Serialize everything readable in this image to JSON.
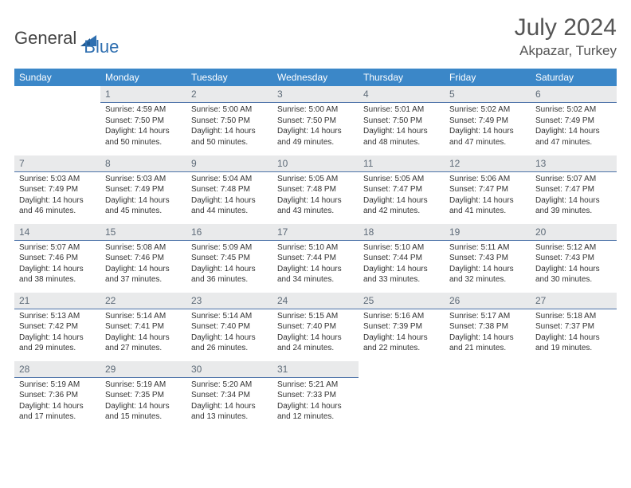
{
  "logo": {
    "part1": "General",
    "part2": "Blue"
  },
  "title": "July 2024",
  "location": "Akpazar, Turkey",
  "colors": {
    "headerBg": "#3b87c8",
    "dayNumBg": "#e9eaeb",
    "dayNumBorder": "#4c72a8",
    "logoBlue": "#2f6fb0"
  },
  "dayHeaders": [
    "Sunday",
    "Monday",
    "Tuesday",
    "Wednesday",
    "Thursday",
    "Friday",
    "Saturday"
  ],
  "weeks": [
    [
      {
        "n": "",
        "sr": "",
        "ss": "",
        "dl1": "",
        "dl2": ""
      },
      {
        "n": "1",
        "sr": "Sunrise: 4:59 AM",
        "ss": "Sunset: 7:50 PM",
        "dl1": "Daylight: 14 hours",
        "dl2": "and 50 minutes."
      },
      {
        "n": "2",
        "sr": "Sunrise: 5:00 AM",
        "ss": "Sunset: 7:50 PM",
        "dl1": "Daylight: 14 hours",
        "dl2": "and 50 minutes."
      },
      {
        "n": "3",
        "sr": "Sunrise: 5:00 AM",
        "ss": "Sunset: 7:50 PM",
        "dl1": "Daylight: 14 hours",
        "dl2": "and 49 minutes."
      },
      {
        "n": "4",
        "sr": "Sunrise: 5:01 AM",
        "ss": "Sunset: 7:50 PM",
        "dl1": "Daylight: 14 hours",
        "dl2": "and 48 minutes."
      },
      {
        "n": "5",
        "sr": "Sunrise: 5:02 AM",
        "ss": "Sunset: 7:49 PM",
        "dl1": "Daylight: 14 hours",
        "dl2": "and 47 minutes."
      },
      {
        "n": "6",
        "sr": "Sunrise: 5:02 AM",
        "ss": "Sunset: 7:49 PM",
        "dl1": "Daylight: 14 hours",
        "dl2": "and 47 minutes."
      }
    ],
    [
      {
        "n": "7",
        "sr": "Sunrise: 5:03 AM",
        "ss": "Sunset: 7:49 PM",
        "dl1": "Daylight: 14 hours",
        "dl2": "and 46 minutes."
      },
      {
        "n": "8",
        "sr": "Sunrise: 5:03 AM",
        "ss": "Sunset: 7:49 PM",
        "dl1": "Daylight: 14 hours",
        "dl2": "and 45 minutes."
      },
      {
        "n": "9",
        "sr": "Sunrise: 5:04 AM",
        "ss": "Sunset: 7:48 PM",
        "dl1": "Daylight: 14 hours",
        "dl2": "and 44 minutes."
      },
      {
        "n": "10",
        "sr": "Sunrise: 5:05 AM",
        "ss": "Sunset: 7:48 PM",
        "dl1": "Daylight: 14 hours",
        "dl2": "and 43 minutes."
      },
      {
        "n": "11",
        "sr": "Sunrise: 5:05 AM",
        "ss": "Sunset: 7:47 PM",
        "dl1": "Daylight: 14 hours",
        "dl2": "and 42 minutes."
      },
      {
        "n": "12",
        "sr": "Sunrise: 5:06 AM",
        "ss": "Sunset: 7:47 PM",
        "dl1": "Daylight: 14 hours",
        "dl2": "and 41 minutes."
      },
      {
        "n": "13",
        "sr": "Sunrise: 5:07 AM",
        "ss": "Sunset: 7:47 PM",
        "dl1": "Daylight: 14 hours",
        "dl2": "and 39 minutes."
      }
    ],
    [
      {
        "n": "14",
        "sr": "Sunrise: 5:07 AM",
        "ss": "Sunset: 7:46 PM",
        "dl1": "Daylight: 14 hours",
        "dl2": "and 38 minutes."
      },
      {
        "n": "15",
        "sr": "Sunrise: 5:08 AM",
        "ss": "Sunset: 7:46 PM",
        "dl1": "Daylight: 14 hours",
        "dl2": "and 37 minutes."
      },
      {
        "n": "16",
        "sr": "Sunrise: 5:09 AM",
        "ss": "Sunset: 7:45 PM",
        "dl1": "Daylight: 14 hours",
        "dl2": "and 36 minutes."
      },
      {
        "n": "17",
        "sr": "Sunrise: 5:10 AM",
        "ss": "Sunset: 7:44 PM",
        "dl1": "Daylight: 14 hours",
        "dl2": "and 34 minutes."
      },
      {
        "n": "18",
        "sr": "Sunrise: 5:10 AM",
        "ss": "Sunset: 7:44 PM",
        "dl1": "Daylight: 14 hours",
        "dl2": "and 33 minutes."
      },
      {
        "n": "19",
        "sr": "Sunrise: 5:11 AM",
        "ss": "Sunset: 7:43 PM",
        "dl1": "Daylight: 14 hours",
        "dl2": "and 32 minutes."
      },
      {
        "n": "20",
        "sr": "Sunrise: 5:12 AM",
        "ss": "Sunset: 7:43 PM",
        "dl1": "Daylight: 14 hours",
        "dl2": "and 30 minutes."
      }
    ],
    [
      {
        "n": "21",
        "sr": "Sunrise: 5:13 AM",
        "ss": "Sunset: 7:42 PM",
        "dl1": "Daylight: 14 hours",
        "dl2": "and 29 minutes."
      },
      {
        "n": "22",
        "sr": "Sunrise: 5:14 AM",
        "ss": "Sunset: 7:41 PM",
        "dl1": "Daylight: 14 hours",
        "dl2": "and 27 minutes."
      },
      {
        "n": "23",
        "sr": "Sunrise: 5:14 AM",
        "ss": "Sunset: 7:40 PM",
        "dl1": "Daylight: 14 hours",
        "dl2": "and 26 minutes."
      },
      {
        "n": "24",
        "sr": "Sunrise: 5:15 AM",
        "ss": "Sunset: 7:40 PM",
        "dl1": "Daylight: 14 hours",
        "dl2": "and 24 minutes."
      },
      {
        "n": "25",
        "sr": "Sunrise: 5:16 AM",
        "ss": "Sunset: 7:39 PM",
        "dl1": "Daylight: 14 hours",
        "dl2": "and 22 minutes."
      },
      {
        "n": "26",
        "sr": "Sunrise: 5:17 AM",
        "ss": "Sunset: 7:38 PM",
        "dl1": "Daylight: 14 hours",
        "dl2": "and 21 minutes."
      },
      {
        "n": "27",
        "sr": "Sunrise: 5:18 AM",
        "ss": "Sunset: 7:37 PM",
        "dl1": "Daylight: 14 hours",
        "dl2": "and 19 minutes."
      }
    ],
    [
      {
        "n": "28",
        "sr": "Sunrise: 5:19 AM",
        "ss": "Sunset: 7:36 PM",
        "dl1": "Daylight: 14 hours",
        "dl2": "and 17 minutes."
      },
      {
        "n": "29",
        "sr": "Sunrise: 5:19 AM",
        "ss": "Sunset: 7:35 PM",
        "dl1": "Daylight: 14 hours",
        "dl2": "and 15 minutes."
      },
      {
        "n": "30",
        "sr": "Sunrise: 5:20 AM",
        "ss": "Sunset: 7:34 PM",
        "dl1": "Daylight: 14 hours",
        "dl2": "and 13 minutes."
      },
      {
        "n": "31",
        "sr": "Sunrise: 5:21 AM",
        "ss": "Sunset: 7:33 PM",
        "dl1": "Daylight: 14 hours",
        "dl2": "and 12 minutes."
      },
      {
        "n": "",
        "sr": "",
        "ss": "",
        "dl1": "",
        "dl2": ""
      },
      {
        "n": "",
        "sr": "",
        "ss": "",
        "dl1": "",
        "dl2": ""
      },
      {
        "n": "",
        "sr": "",
        "ss": "",
        "dl1": "",
        "dl2": ""
      }
    ]
  ]
}
